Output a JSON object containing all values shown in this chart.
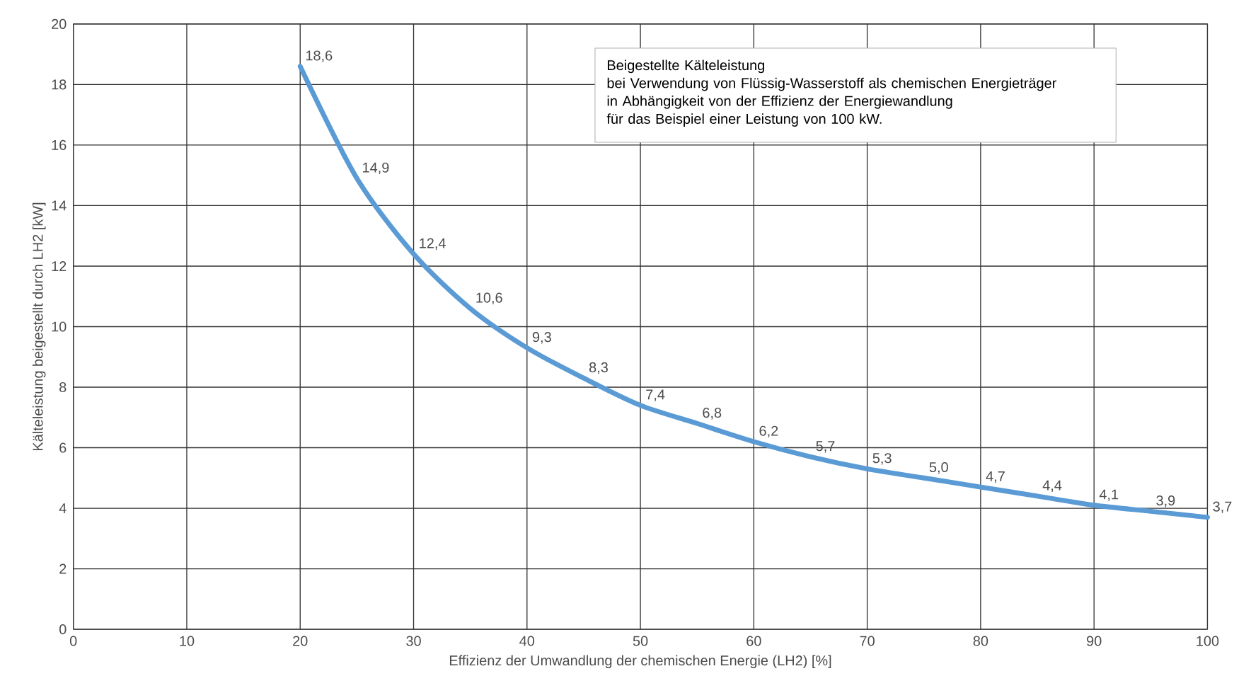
{
  "chart_data": {
    "type": "line",
    "xlabel": "Effizienz der Umwandlung der chemischen Energie (LH2) [%]",
    "ylabel": "Kälteleistung beigestellt durch LH2 [kW]",
    "annotations": [
      "Beigestellte Kälteleistung",
      "bei Verwendung von Flüssig-Wasserstoff als chemischen Energieträger",
      "in Abhängigkeit von der Effizienz der Energiewandlung",
      "für das Beispiel einer Leistung von 100 kW."
    ],
    "x": [
      20,
      25,
      30,
      35,
      40,
      45,
      50,
      55,
      60,
      65,
      70,
      75,
      80,
      85,
      90,
      95,
      100
    ],
    "series": [
      {
        "color": "#5b9bd5",
        "values": [
          18.6,
          14.9,
          12.4,
          10.6,
          9.3,
          8.3,
          7.4,
          6.8,
          6.2,
          5.7,
          5.3,
          5.0,
          4.7,
          4.4,
          4.1,
          3.9,
          3.7
        ],
        "value_labels": [
          "18,6",
          "14,9",
          "12,4",
          "10,6",
          "9,3",
          "8,3",
          "7,4",
          "6,8",
          "6,2",
          "5,7",
          "5,3",
          "5,0",
          "4,7",
          "4,4",
          "4,1",
          "3,9",
          "3,7"
        ]
      }
    ],
    "xlim": [
      0,
      100
    ],
    "xticks": [
      0,
      10,
      20,
      30,
      40,
      50,
      60,
      70,
      80,
      90,
      100
    ],
    "ylim": [
      0,
      20
    ],
    "yticks": [
      0,
      2,
      4,
      6,
      8,
      10,
      12,
      14,
      16,
      18,
      20
    ],
    "grid": true
  }
}
